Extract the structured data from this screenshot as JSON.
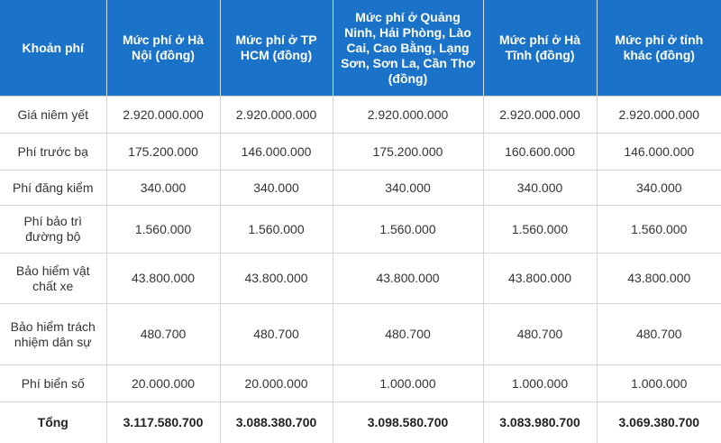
{
  "table": {
    "headers": [
      "Khoản phí",
      "Mức phí ở Hà Nội (đồng)",
      "Mức phí ở TP HCM (đồng)",
      "Mức phí ở Quảng Ninh, Hải Phòng, Lào Cai, Cao Bằng, Lạng Sơn, Sơn La, Cần Thơ (đồng)",
      "Mức phí ở Hà Tĩnh (đồng)",
      "Mức phí ở tỉnh khác (đồng)"
    ],
    "rows": [
      [
        "Giá niêm yết",
        "2.920.000.000",
        "2.920.000.000",
        "2.920.000.000",
        "2.920.000.000",
        "2.920.000.000"
      ],
      [
        "Phí trước bạ",
        "175.200.000",
        "146.000.000",
        "175.200.000",
        "160.600.000",
        "146.000.000"
      ],
      [
        "Phí đăng kiểm",
        "340.000",
        "340.000",
        "340.000",
        "340.000",
        "340.000"
      ],
      [
        "Phí bảo trì đường bộ",
        "1.560.000",
        "1.560.000",
        "1.560.000",
        "1.560.000",
        "1.560.000"
      ],
      [
        "Bảo hiểm vật chất xe",
        "43.800.000",
        "43.800.000",
        "43.800.000",
        "43.800.000",
        "43.800.000"
      ],
      [
        "Bảo hiểm trách nhiệm dân sự",
        "480.700",
        "480.700",
        "480.700",
        "480.700",
        "480.700"
      ],
      [
        "Phí biển số",
        "20.000.000",
        "20.000.000",
        "1.000.000",
        "1.000.000",
        "1.000.000"
      ],
      [
        "Tổng",
        "3.117.580.700",
        "3.088.380.700",
        "3.098.580.700",
        "3.083.980.700",
        "3.069.380.700"
      ]
    ]
  }
}
